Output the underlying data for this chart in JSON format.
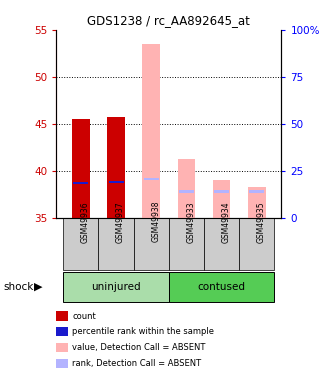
{
  "title": "GDS1238 / rc_AA892645_at",
  "samples": [
    "GSM49936",
    "GSM49937",
    "GSM49938",
    "GSM49933",
    "GSM49934",
    "GSM49935"
  ],
  "ylim_left": [
    35,
    55
  ],
  "ylim_right": [
    0,
    100
  ],
  "yticks_left": [
    35,
    40,
    45,
    50,
    55
  ],
  "yticks_right": [
    0,
    25,
    50,
    75,
    100
  ],
  "ytick_labels_right": [
    "0",
    "25",
    "50",
    "75",
    "100%"
  ],
  "ytick_labels_left": [
    "35",
    "40",
    "45",
    "50",
    "55"
  ],
  "bar_bottom": 35,
  "red_bars_present": [
    true,
    true,
    false,
    false,
    false,
    false
  ],
  "red_bars_tops": [
    45.5,
    45.7,
    35,
    35,
    35,
    35
  ],
  "pink_bars_present": [
    false,
    false,
    true,
    true,
    true,
    true
  ],
  "pink_bars_tops": [
    35,
    35,
    53.5,
    41.2,
    39.0,
    38.2
  ],
  "blue_present": [
    true,
    true,
    false,
    false,
    false,
    false
  ],
  "blue_values": [
    38.7,
    38.8,
    0,
    0,
    0,
    0
  ],
  "lavender_present": [
    false,
    false,
    true,
    true,
    true,
    true
  ],
  "lavender_values": [
    0,
    0,
    39.1,
    37.8,
    37.8,
    37.8
  ],
  "colors_red": "#cc0000",
  "colors_pink": "#ffb3b3",
  "colors_blue": "#1a1acc",
  "colors_lavender": "#b3b3ff",
  "colors_sample_bg": "#cccccc",
  "colors_uninjured": "#aaddaa",
  "colors_contused": "#55cc55",
  "legend_colors": [
    "#cc0000",
    "#1a1acc",
    "#ffb3b3",
    "#b3b3ff"
  ],
  "legend_labels": [
    "count",
    "percentile rank within the sample",
    "value, Detection Call = ABSENT",
    "rank, Detection Call = ABSENT"
  ],
  "group_label": "shock"
}
